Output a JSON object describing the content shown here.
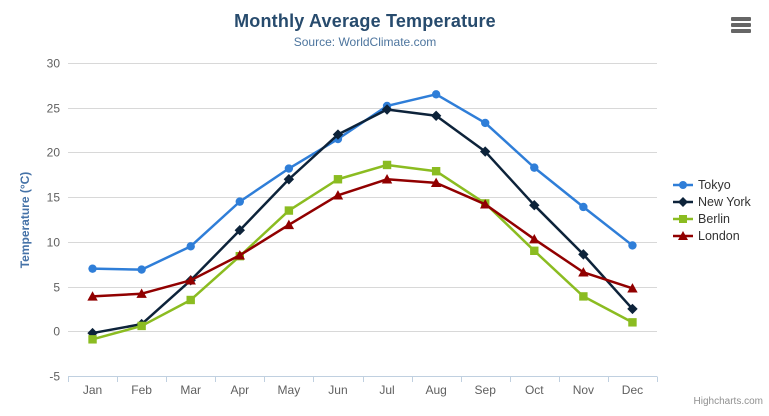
{
  "chart": {
    "title": "Monthly Average Temperature",
    "subtitle": "Source: WorldClimate.com",
    "credits": "Highcharts.com"
  },
  "chart_data": {
    "type": "line",
    "title": "Monthly Average Temperature",
    "subtitle": "Source: WorldClimate.com",
    "categories": [
      "Jan",
      "Feb",
      "Mar",
      "Apr",
      "May",
      "Jun",
      "Jul",
      "Aug",
      "Sep",
      "Oct",
      "Nov",
      "Dec"
    ],
    "series": [
      {
        "name": "Tokyo",
        "color": "#2f7ed8",
        "marker": "circle",
        "values": [
          7.0,
          6.9,
          9.5,
          14.5,
          18.2,
          21.5,
          25.2,
          26.5,
          23.3,
          18.3,
          13.9,
          9.6
        ]
      },
      {
        "name": "New York",
        "color": "#0d233a",
        "marker": "diamond",
        "values": [
          -0.2,
          0.8,
          5.7,
          11.3,
          17.0,
          22.0,
          24.8,
          24.1,
          20.1,
          14.1,
          8.6,
          2.5
        ]
      },
      {
        "name": "Berlin",
        "color": "#8bbc21",
        "marker": "square",
        "values": [
          -0.9,
          0.6,
          3.5,
          8.4,
          13.5,
          17.0,
          18.6,
          17.9,
          14.3,
          9.0,
          3.9,
          1.0
        ]
      },
      {
        "name": "London",
        "color": "#910000",
        "marker": "triangle",
        "values": [
          3.9,
          4.2,
          5.7,
          8.5,
          11.9,
          15.2,
          17.0,
          16.6,
          14.2,
          10.3,
          6.6,
          4.8
        ]
      }
    ],
    "xlabel": "",
    "ylabel": "Temperature (°C)",
    "ylim": [
      -5,
      30
    ],
    "yticks": [
      -5,
      0,
      5,
      10,
      15,
      20,
      25,
      30
    ],
    "grid": true,
    "legend_position": "right",
    "colors": {
      "grid_line": "#d8d8d8",
      "axis_line": "#c0d0e0",
      "tick_label": "#606060",
      "title": "#274b6d",
      "subtitle": "#4d759e",
      "axis_title": "#4572a7",
      "legend_text": "#333333",
      "credits_text": "#909090"
    }
  }
}
